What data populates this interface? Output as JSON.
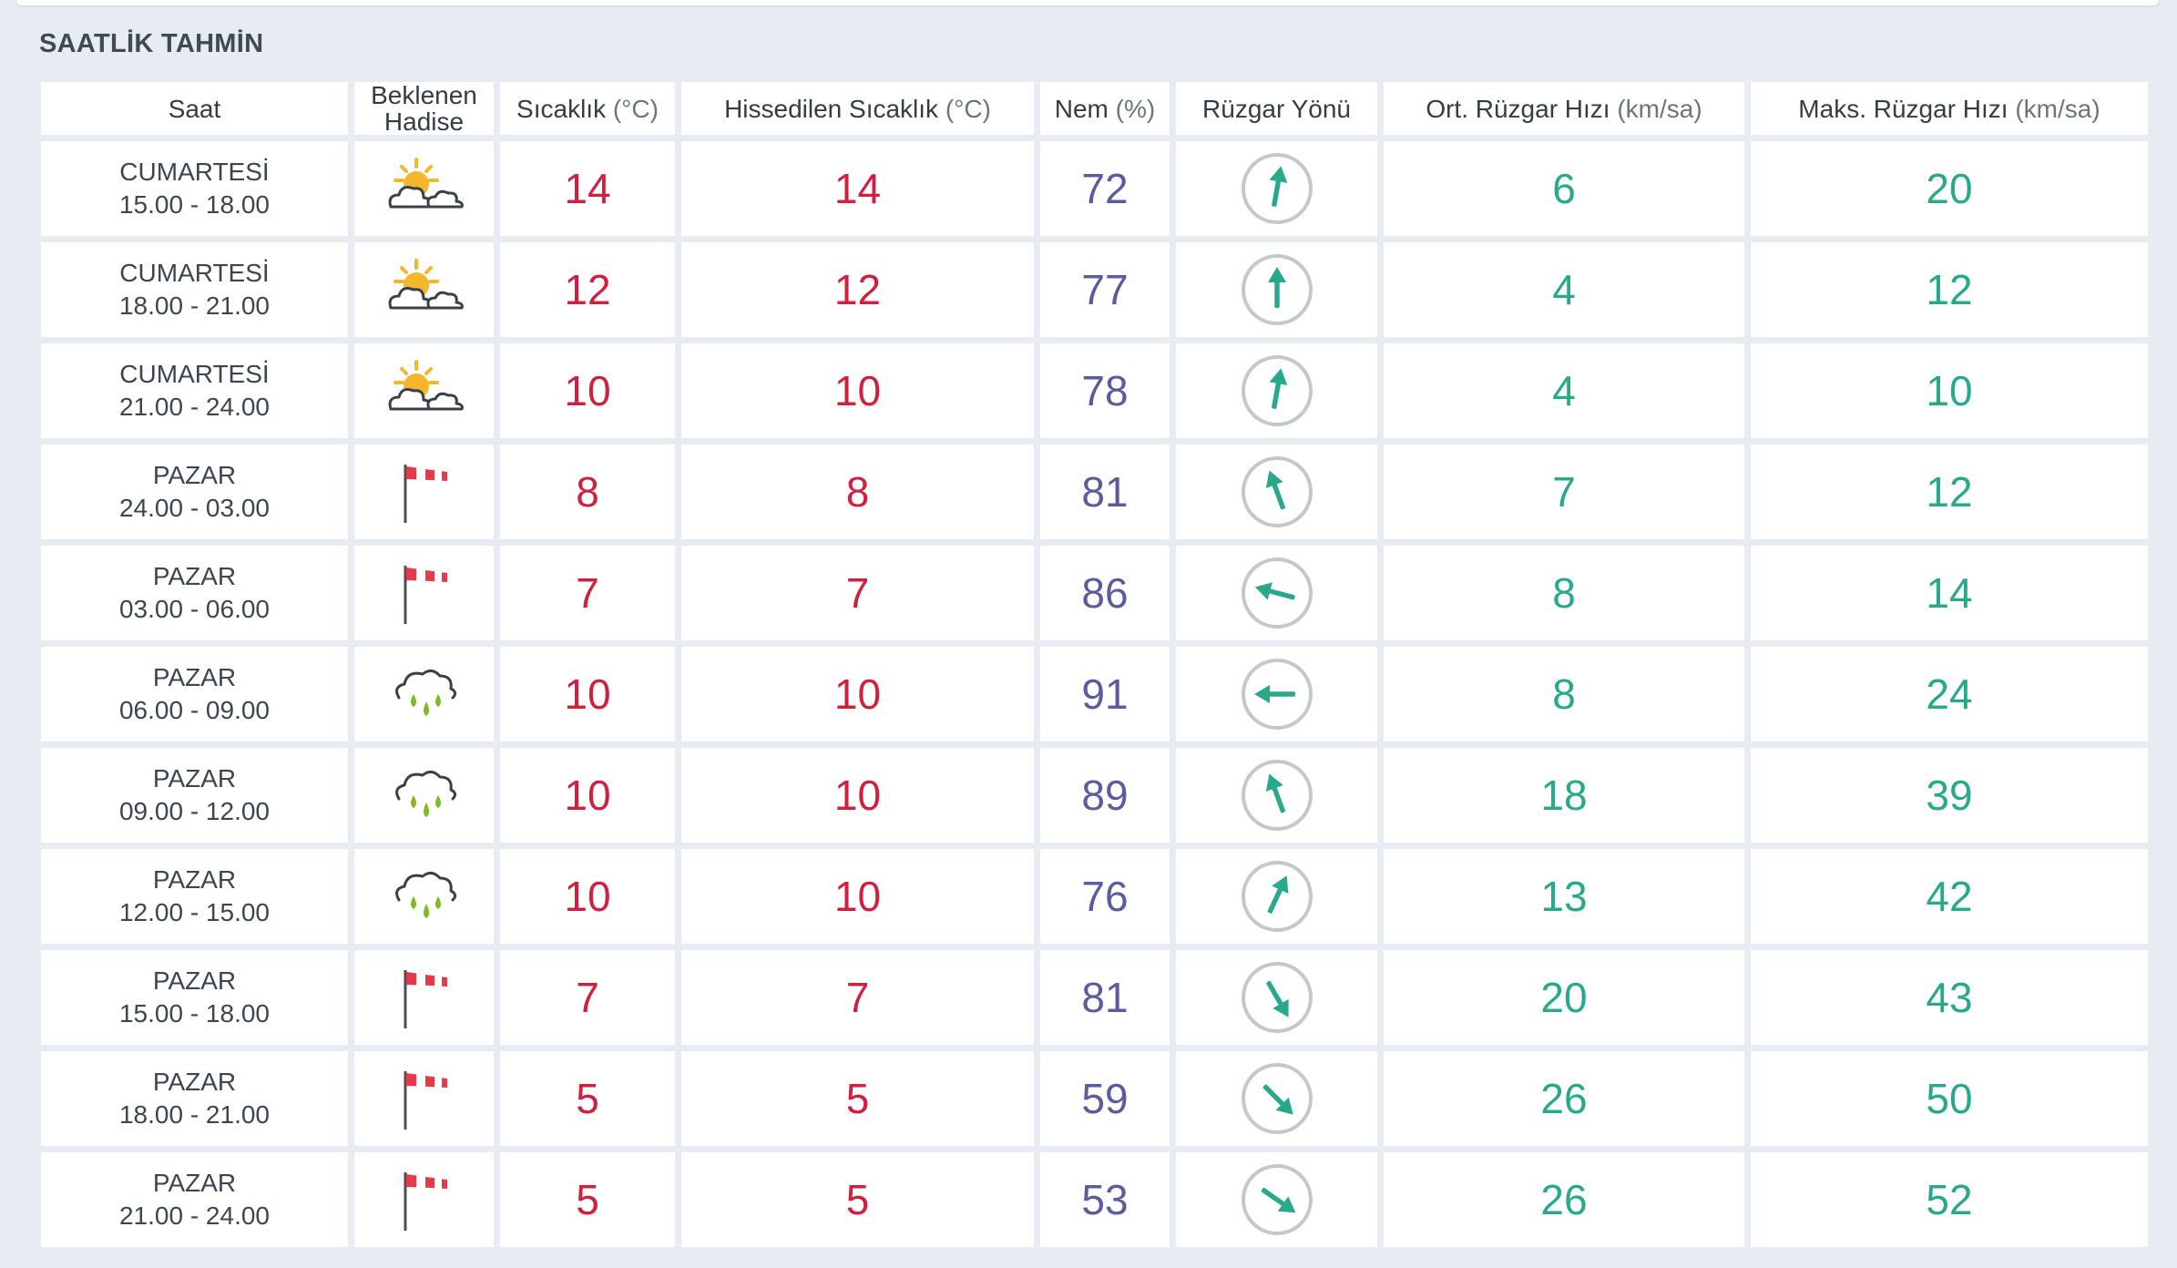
{
  "section_title": "SAATLİK TAHMİN",
  "columns": {
    "saat": "Saat",
    "hadise_line1": "Beklenen",
    "hadise_line2": "Hadise",
    "temp": "Sıcaklık",
    "temp_unit": "(°C)",
    "feels": "Hissedilen Sıcaklık",
    "feels_unit": "(°C)",
    "hum": "Nem",
    "hum_unit": "(%)",
    "wind_dir": "Rüzgar Yönü",
    "wind_avg": "Ort. Rüzgar Hızı",
    "wind_avg_unit": "(km/sa)",
    "wind_max": "Maks. Rüzgar Hızı",
    "wind_max_unit": "(km/sa)"
  },
  "colors": {
    "temperature": "#d1203f",
    "humidity": "#5a5c9e",
    "wind": "#27a98a"
  },
  "rows": [
    {
      "day": "CUMARTESİ",
      "time": "15.00 - 18.00",
      "icon": "partly-cloudy-icon",
      "temp": "14",
      "feels": "14",
      "hum": "72",
      "dir_deg": 10,
      "wind_avg": "6",
      "wind_max": "20"
    },
    {
      "day": "CUMARTESİ",
      "time": "18.00 - 21.00",
      "icon": "partly-cloudy-icon",
      "temp": "12",
      "feels": "12",
      "hum": "77",
      "dir_deg": 0,
      "wind_avg": "4",
      "wind_max": "12"
    },
    {
      "day": "CUMARTESİ",
      "time": "21.00 - 24.00",
      "icon": "partly-cloudy-icon",
      "temp": "10",
      "feels": "10",
      "hum": "78",
      "dir_deg": 10,
      "wind_avg": "4",
      "wind_max": "10"
    },
    {
      "day": "PAZAR",
      "time": "24.00 - 03.00",
      "icon": "windy-flag-icon",
      "temp": "8",
      "feels": "8",
      "hum": "81",
      "dir_deg": -20,
      "wind_avg": "7",
      "wind_max": "12"
    },
    {
      "day": "PAZAR",
      "time": "03.00 - 06.00",
      "icon": "windy-flag-icon",
      "temp": "7",
      "feels": "7",
      "hum": "86",
      "dir_deg": -75,
      "wind_avg": "8",
      "wind_max": "14"
    },
    {
      "day": "PAZAR",
      "time": "06.00 - 09.00",
      "icon": "rain-icon",
      "temp": "10",
      "feels": "10",
      "hum": "91",
      "dir_deg": -90,
      "wind_avg": "8",
      "wind_max": "24"
    },
    {
      "day": "PAZAR",
      "time": "09.00 - 12.00",
      "icon": "rain-icon",
      "temp": "10",
      "feels": "10",
      "hum": "89",
      "dir_deg": -20,
      "wind_avg": "18",
      "wind_max": "39"
    },
    {
      "day": "PAZAR",
      "time": "12.00 - 15.00",
      "icon": "rain-icon",
      "temp": "10",
      "feels": "10",
      "hum": "76",
      "dir_deg": 25,
      "wind_avg": "13",
      "wind_max": "42"
    },
    {
      "day": "PAZAR",
      "time": "15.00 - 18.00",
      "icon": "windy-flag-icon",
      "temp": "7",
      "feels": "7",
      "hum": "81",
      "dir_deg": 150,
      "wind_avg": "20",
      "wind_max": "43"
    },
    {
      "day": "PAZAR",
      "time": "18.00 - 21.00",
      "icon": "windy-flag-icon",
      "temp": "5",
      "feels": "5",
      "hum": "59",
      "dir_deg": 135,
      "wind_avg": "26",
      "wind_max": "50"
    },
    {
      "day": "PAZAR",
      "time": "21.00 - 24.00",
      "icon": "windy-flag-icon",
      "temp": "5",
      "feels": "5",
      "hum": "53",
      "dir_deg": 125,
      "wind_avg": "26",
      "wind_max": "52"
    }
  ]
}
